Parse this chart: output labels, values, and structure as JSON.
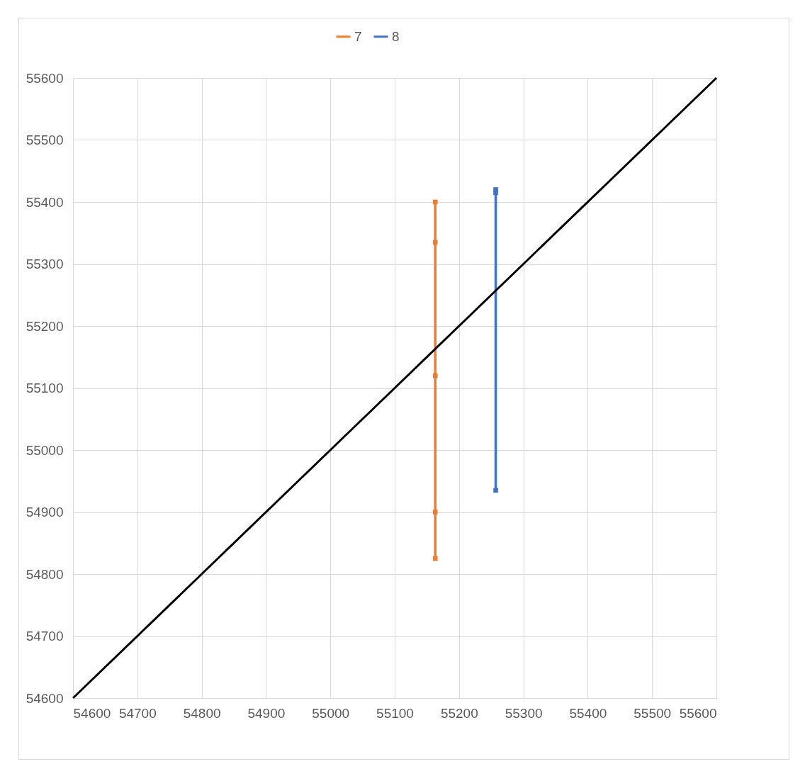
{
  "chart_data": {
    "type": "line",
    "legend": "top",
    "grid": true,
    "xlim": [
      54600,
      55600
    ],
    "xticks": [
      54600,
      54700,
      54800,
      54900,
      55000,
      55100,
      55200,
      55300,
      55400,
      55500,
      55600
    ],
    "ylim": [
      54600,
      55600
    ],
    "yticks": [
      54600,
      54700,
      54800,
      54900,
      55000,
      55100,
      55200,
      55300,
      55400,
      55500,
      55600
    ],
    "series": [
      {
        "name": "7",
        "color": "#ed7d31",
        "marker": "square",
        "x": [
          55163,
          55163,
          55163,
          55163,
          55163
        ],
        "values": [
          55400,
          55335,
          55120,
          54900,
          54825
        ]
      },
      {
        "name": "8",
        "color": "#4472c4",
        "marker": "square",
        "x": [
          55257,
          55257,
          55257
        ],
        "values": [
          55420,
          55415,
          54935
        ]
      },
      {
        "color": "#000000",
        "x": [
          54600,
          55600
        ],
        "values": [
          54600,
          55600
        ]
      }
    ]
  }
}
